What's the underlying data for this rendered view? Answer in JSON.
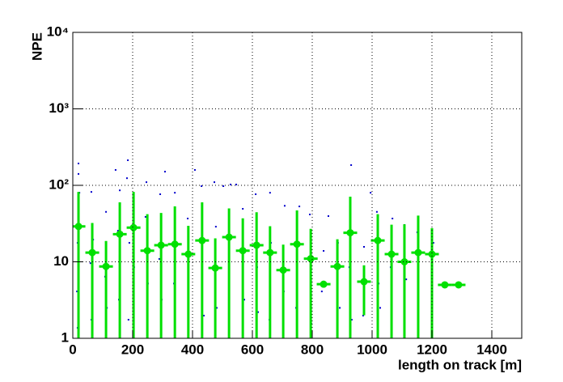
{
  "chart_data": {
    "type": "scatter",
    "xlabel": "length on track [m]",
    "ylabel": "NPE",
    "xlim": [
      0,
      1500
    ],
    "ylim": [
      1,
      10000
    ],
    "ylog": true,
    "grid": true,
    "xticks": [
      0,
      200,
      400,
      600,
      800,
      1000,
      1200,
      1400
    ],
    "yticks": [
      1,
      10,
      {
        "value": 100,
        "label": "10²"
      },
      {
        "value": 1000,
        "label": "10³"
      },
      {
        "value": 10000,
        "label": "10⁴"
      }
    ],
    "series": [
      {
        "color": "#0000cc",
        "x": [
          19,
          19,
          22,
          16,
          14,
          16,
          62,
          68,
          59,
          65,
          62,
          111,
          108,
          114,
          111,
          143,
          157,
          151,
          154,
          184,
          181,
          189,
          186,
          203,
          205,
          246,
          243,
          251,
          249,
          292,
          308,
          289,
          297,
          341,
          338,
          384,
          386,
          408,
          430,
          432,
          438,
          473,
          478,
          481,
          503,
          527,
          522,
          546,
          568,
          573,
          611,
          616,
          619,
          659,
          662,
          657,
          708,
          705,
          757,
          746,
          792,
          797,
          838,
          832,
          854,
          886,
          892,
          930,
          924,
          932,
          973,
          970,
          995,
          1016,
          1022,
          1027,
          1068,
          1062,
          1108,
          1114,
          1151,
          1154,
          1205,
          1200
        ],
        "values": [
          193,
          141,
          80,
          17.7,
          4.1,
          1.37,
          82,
          19.5,
          9.6,
          3.4,
          1.75,
          45,
          6.4,
          2.5,
          1.37,
          159,
          86,
          25.5,
          3.2,
          213,
          124,
          17.7,
          1.75,
          60,
          8.5,
          110,
          38.7,
          5.2,
          1.75,
          76.5,
          151,
          10.9,
          3.2,
          80,
          5.2,
          36.8,
          8.5,
          159,
          97.6,
          17.7,
          1.98,
          110,
          28.8,
          2.5,
          97.6,
          102.5,
          5.9,
          102.5,
          49.3,
          3.2,
          76.5,
          8.5,
          2.2,
          80,
          17.7,
          1.75,
          54,
          4.1,
          53,
          2.5,
          41.6,
          1.55,
          13.9,
          4.1,
          39.6,
          17.7,
          2.5,
          184,
          8.5,
          1.75,
          15.7,
          1.98,
          80,
          45,
          5.2,
          2.5,
          36.8,
          8.5,
          30.3,
          5.9,
          24.3,
          4.1,
          17.7,
          8.5
        ]
      },
      {
        "color": "#00e000",
        "x_error": 23,
        "x": [
          19,
          65,
          111,
          157,
          203,
          249,
          295,
          341,
          386,
          432,
          476,
          522,
          568,
          614,
          659,
          703,
          749,
          795,
          838,
          884,
          927,
          973,
          1019,
          1065,
          1108,
          1154,
          1200,
          1243,
          1289
        ],
        "values": [
          29,
          13.2,
          8.7,
          23,
          28,
          14,
          16.5,
          17,
          12.6,
          19,
          8.3,
          21,
          14,
          16.5,
          13.2,
          7.8,
          17,
          11,
          5.1,
          8.7,
          24,
          5.5,
          19,
          12.6,
          10,
          13.2,
          12.6,
          5,
          5
        ],
        "errors": [
          53,
          19,
          10,
          37,
          54,
          28,
          27,
          36,
          17,
          41,
          12,
          29,
          23,
          28,
          16,
          9,
          30,
          16,
          0,
          11,
          47,
          3.5,
          23,
          18,
          21,
          27,
          15,
          0,
          0
        ]
      }
    ]
  }
}
